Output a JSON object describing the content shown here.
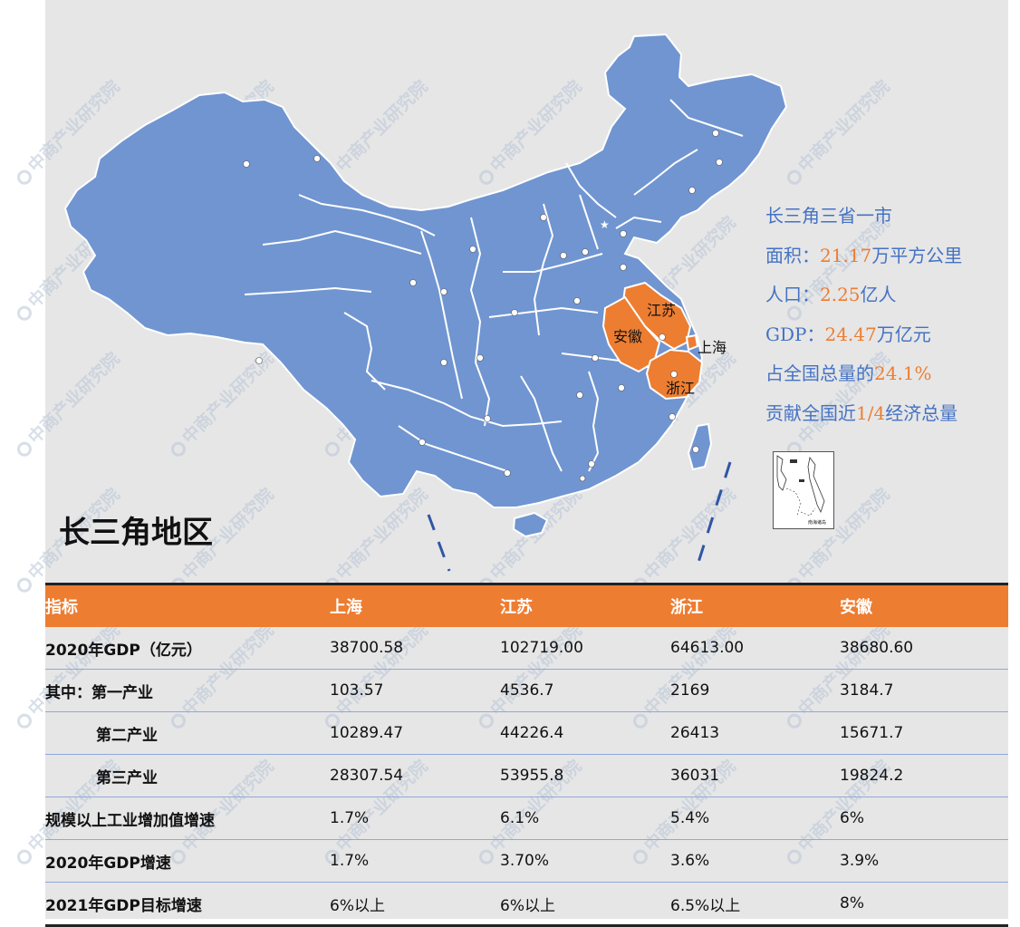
{
  "colors": {
    "china_fill": "#7095d1",
    "highlight_fill": "#ed7d31",
    "border": "#ffffff",
    "accent": "#ed7d31",
    "text_blue": "#4472c4",
    "table_header": "#ed7d31",
    "background": "#e6e6e6"
  },
  "watermark": "中商产业研究院",
  "map": {
    "highlighted_provinces": [
      "江苏",
      "安徽",
      "上海",
      "浙江"
    ],
    "labels": {
      "jiangsu": "江苏",
      "anhui": "安徽",
      "shanghai": "上海",
      "zhejiang": "浙江"
    }
  },
  "region_title": "长三角地区",
  "info": {
    "line1": "长三角三省一市",
    "area_label": "面积：",
    "area_value": "21.17",
    "area_unit": "万平方公里",
    "pop_label": "人口：",
    "pop_value": "2.25",
    "pop_unit": "亿人",
    "gdp_label": "GDP：",
    "gdp_value": "24.47",
    "gdp_unit": "万亿元",
    "share_label": "占全国总量的",
    "share_value": "24.1%",
    "contrib_prefix": "贡献全国近",
    "contrib_value": "1/4",
    "contrib_suffix": "经济总量"
  },
  "inset": {
    "caption": "南海诸岛",
    "icon": "south-china-sea-inset-map"
  },
  "table": {
    "headers": [
      "指标",
      "上海",
      "江苏",
      "浙江",
      "安徽"
    ],
    "rows": [
      [
        "2020年GDP（亿元）",
        "38700.58",
        "102719.00",
        "64613.00",
        "38680.60"
      ],
      [
        "其中：第一产业",
        "103.57",
        "4536.7",
        "2169",
        "3184.7"
      ],
      [
        "第二产业",
        "10289.47",
        "44226.4",
        "26413",
        "15671.7"
      ],
      [
        "第三产业",
        "28307.54",
        "53955.8",
        "36031",
        "19824.2"
      ],
      [
        "规模以上工业增加值增速",
        "1.7%",
        "6.1%",
        "5.4%",
        "6%"
      ],
      [
        "2020年GDP增速",
        "1.7%",
        "3.70%",
        "3.6%",
        "3.9%"
      ],
      [
        "2021年GDP目标增速",
        "6%以上",
        "6%以上",
        "6.5%以上",
        "8%"
      ]
    ]
  }
}
